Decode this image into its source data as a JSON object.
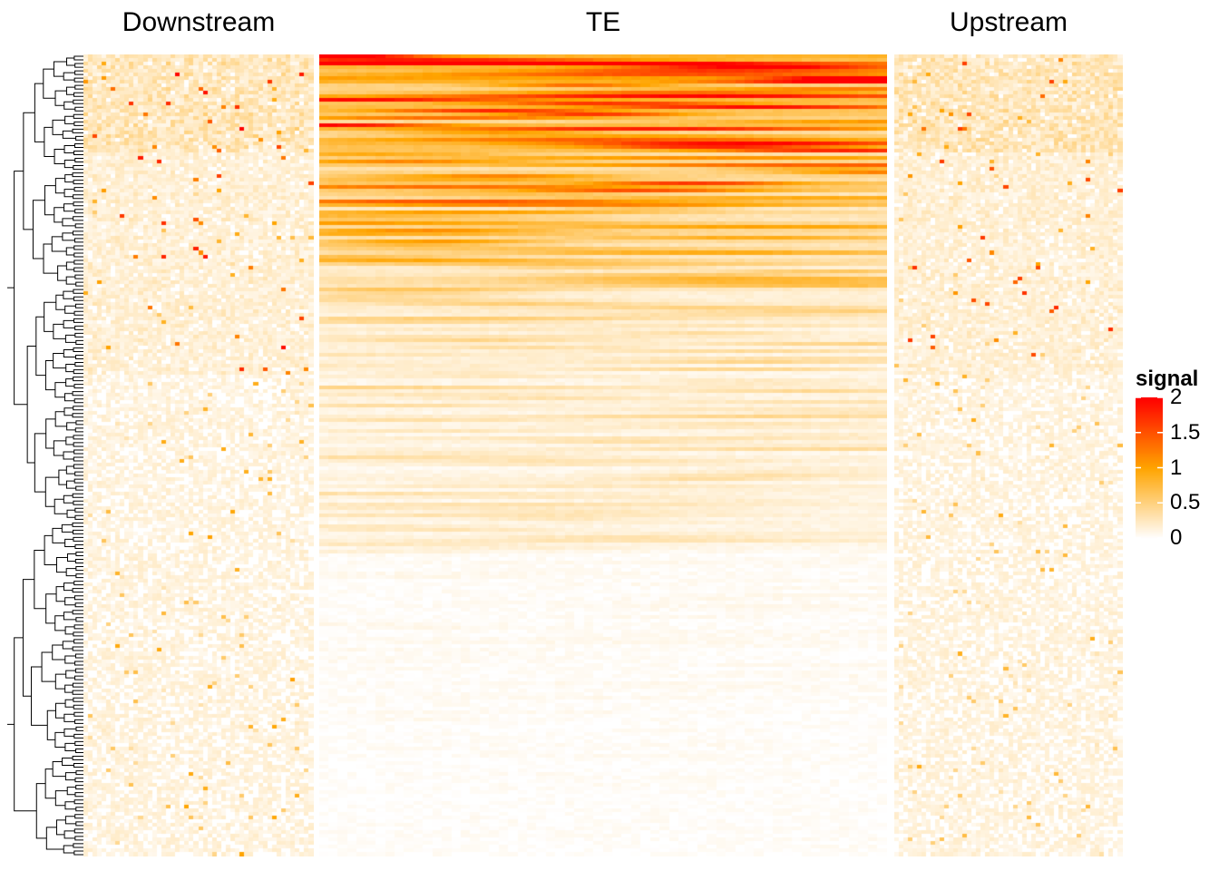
{
  "chart_data": {
    "type": "heatmap",
    "panels": [
      {
        "title": "Downstream",
        "key": "downstream"
      },
      {
        "title": "TE",
        "key": "te"
      },
      {
        "title": "Upstream",
        "key": "upstream"
      }
    ],
    "row_dendrogram": true,
    "n_rows": 220,
    "color_scale": {
      "colors": [
        "#ffffff",
        "#ffa500",
        "#ff0000"
      ],
      "color_stops": [
        0,
        1,
        2
      ],
      "range": [
        0,
        2
      ],
      "legend_title": "signal",
      "legend_ticks": [
        {
          "value": 2,
          "label": "2"
        },
        {
          "value": 1.5,
          "label": "1.5"
        },
        {
          "value": 1,
          "label": "1"
        },
        {
          "value": 0.5,
          "label": "0.5"
        },
        {
          "value": 0,
          "label": "0"
        }
      ],
      "legend_placement": "right"
    },
    "summary_signal": {
      "te": {
        "top_rows_max": 2.1,
        "middle_rows": 0.4,
        "bottom_rows": 0.05
      },
      "downstream": {
        "typical": 0.15,
        "hot_spots_max": 1.8
      },
      "upstream": {
        "typical": 0.15,
        "hot_spots_max": 1.6
      }
    }
  }
}
